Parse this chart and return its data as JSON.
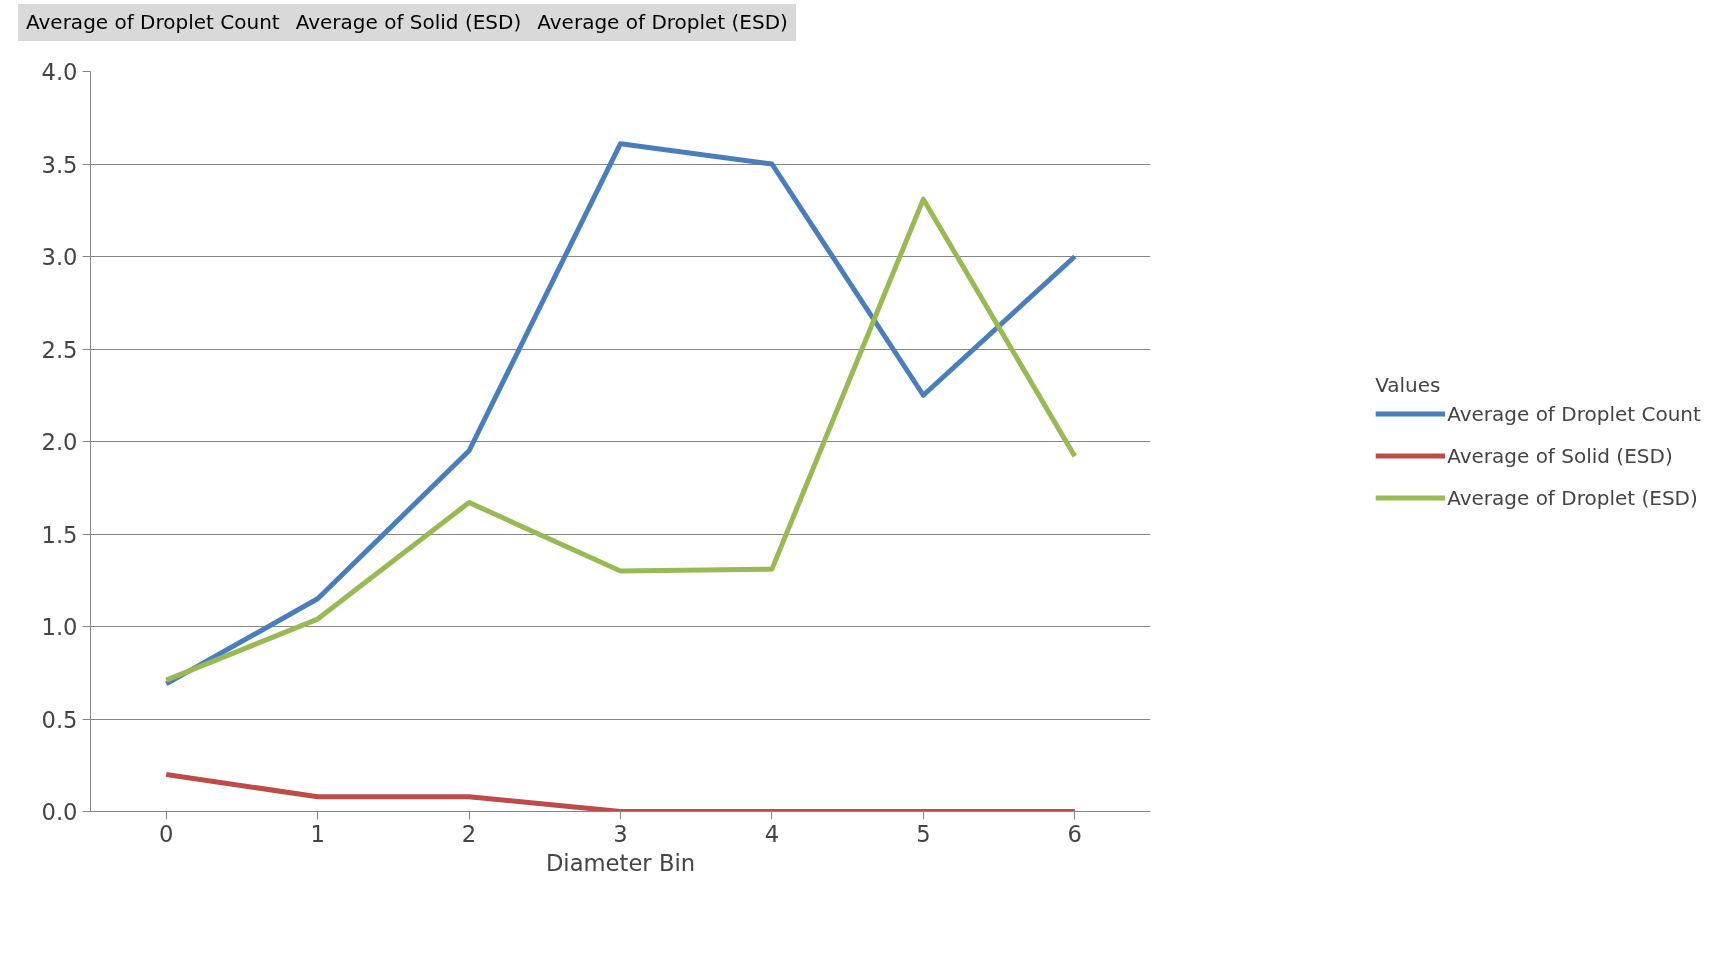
{
  "chart_data": {
    "type": "line",
    "xlabel": "Diameter Bin",
    "legend_title": "Values",
    "categories": [
      "0",
      "1",
      "2",
      "3",
      "4",
      "5",
      "6"
    ],
    "series": [
      {
        "name": "Average of Droplet Count",
        "color": "#4a7ebb",
        "values": [
          0.69,
          1.15,
          1.95,
          3.61,
          3.5,
          2.25,
          3.0
        ]
      },
      {
        "name": "Average of Solid (ESD)",
        "color": "#be4b48",
        "values": [
          0.2,
          0.08,
          0.08,
          0,
          0,
          0,
          0
        ]
      },
      {
        "name": "Average of Droplet (ESD)",
        "color": "#98b954",
        "values": [
          0.71,
          1.04,
          1.67,
          1.3,
          1.31,
          3.31,
          1.92
        ]
      }
    ],
    "annotations": [
      "Average of Droplet Count",
      "Average of Solid (ESD)",
      "Average of Droplet (ESD)"
    ],
    "ylim": [
      0,
      4
    ],
    "yticks": [
      {
        "value": 0,
        "label": "0.0"
      },
      {
        "value": 0.5,
        "label": "0.5"
      },
      {
        "value": 1,
        "label": "1.0"
      },
      {
        "value": 1.5,
        "label": "1.5"
      },
      {
        "value": 2,
        "label": "2.0"
      },
      {
        "value": 2.5,
        "label": "2.5"
      },
      {
        "value": 3,
        "label": "3.0"
      },
      {
        "value": 3.5,
        "label": "3.5"
      },
      {
        "value": 4,
        "label": "4.0"
      }
    ],
    "grid": "y",
    "legend": "right",
    "marker": "none",
    "line_style": "solid"
  }
}
